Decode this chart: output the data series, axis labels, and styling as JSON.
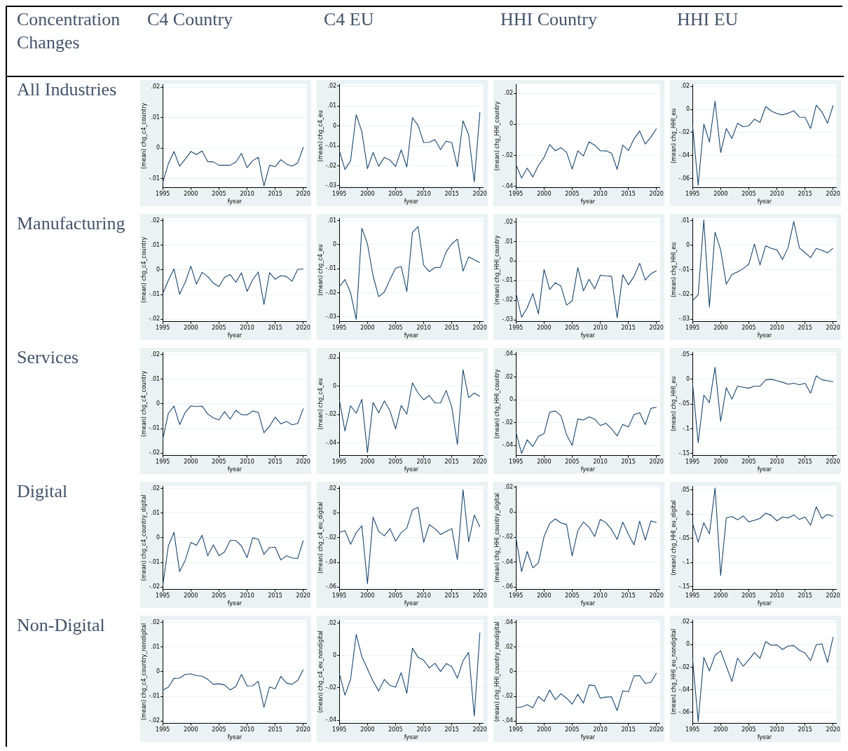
{
  "chart_data": [
    {
      "type": "other",
      "title": "Concentration Changes",
      "categories": [
        "C4 Country",
        "C4 EU",
        "HHI Country",
        "HHI EU"
      ],
      "y_categories": [
        "All Industries",
        "Manufacturing",
        "Services",
        "Digital",
        "Non-Digital"
      ]
    },
    {
      "type": "line",
      "xlabel": "fyear",
      "ylabel": "(mean) chg_c4_country",
      "x": [
        1995,
        1996,
        1997,
        1998,
        1999,
        2000,
        2001,
        2002,
        2003,
        2004,
        2005,
        2006,
        2007,
        2008,
        2009,
        2010,
        2011,
        2012,
        2013,
        2014,
        2015,
        2016,
        2017,
        2018,
        2019,
        2020
      ],
      "xlim": [
        1995,
        2020.6
      ],
      "xticks": [
        1995,
        2000,
        2005,
        2010,
        2015,
        2020
      ],
      "ylim": [
        -0.013,
        0.021
      ],
      "yticks": [
        {
          "value": -0.01,
          "label": "-.01"
        },
        {
          "value": 0,
          "label": "0"
        },
        {
          "value": 0.01,
          "label": ".01"
        },
        {
          "value": 0.02,
          "label": ".02"
        }
      ],
      "grid": "y",
      "series": [
        {
          "color": "#1a476f",
          "values": [
            -0.0113,
            -0.0051,
            -0.0011,
            -0.0059,
            -0.0036,
            -0.0011,
            -0.0021,
            -0.0009,
            -0.0044,
            -0.0045,
            -0.0056,
            -0.0056,
            -0.0056,
            -0.0046,
            -0.0017,
            -0.0064,
            -0.0041,
            -0.003,
            -0.0124,
            -0.0056,
            -0.0061,
            -0.0038,
            -0.0052,
            -0.0059,
            -0.0049,
            0.0003
          ]
        }
      ]
    },
    {
      "type": "line",
      "xlabel": "fyear",
      "ylabel": "(mean) chg_c4_eu",
      "x": [
        1995,
        1996,
        1997,
        1998,
        1999,
        2000,
        2001,
        2002,
        2003,
        2004,
        2005,
        2006,
        2007,
        2008,
        2009,
        2010,
        2011,
        2012,
        2013,
        2014,
        2015,
        2016,
        2017,
        2018,
        2019,
        2020
      ],
      "xlim": [
        1995,
        2020.6
      ],
      "xticks": [
        1995,
        2000,
        2005,
        2010,
        2015,
        2020
      ],
      "ylim": [
        -0.031,
        0.021
      ],
      "yticks": [
        {
          "value": -0.03,
          "label": "-.03"
        },
        {
          "value": -0.02,
          "label": "-.02"
        },
        {
          "value": -0.01,
          "label": "-.01"
        },
        {
          "value": 0,
          "label": "0"
        },
        {
          "value": 0.01,
          "label": ".01"
        },
        {
          "value": 0.02,
          "label": ".02"
        }
      ],
      "grid": "y",
      "series": [
        {
          "color": "#1a476f",
          "values": [
            -0.0124,
            -0.0218,
            -0.0174,
            0.0056,
            -0.0028,
            -0.0214,
            -0.0133,
            -0.0202,
            -0.0158,
            -0.0171,
            -0.0203,
            -0.012,
            -0.0206,
            0.0042,
            0.0003,
            -0.0083,
            -0.0082,
            -0.0068,
            -0.0118,
            -0.0076,
            -0.0084,
            -0.0204,
            0.0026,
            -0.0044,
            -0.0281,
            0.007
          ]
        }
      ]
    },
    {
      "type": "line",
      "xlabel": "fyear",
      "ylabel": "(mean) chg_HHI_country",
      "x": [
        1995,
        1996,
        1997,
        1998,
        1999,
        2000,
        2001,
        2002,
        2003,
        2004,
        2005,
        2006,
        2007,
        2008,
        2009,
        2010,
        2011,
        2012,
        2013,
        2014,
        2015,
        2016,
        2017,
        2018,
        2019,
        2020
      ],
      "xlim": [
        1995,
        2020.6
      ],
      "xticks": [
        1995,
        2000,
        2005,
        2010,
        2015,
        2020
      ],
      "ylim": [
        -0.041,
        0.026
      ],
      "yticks": [
        {
          "value": -0.04,
          "label": "-.04"
        },
        {
          "value": -0.02,
          "label": "-.02"
        },
        {
          "value": 0,
          "label": "0"
        },
        {
          "value": 0.02,
          "label": ".02"
        }
      ],
      "grid": "y",
      "series": [
        {
          "color": "#1a476f",
          "values": [
            -0.026,
            -0.0347,
            -0.0283,
            -0.034,
            -0.0266,
            -0.0214,
            -0.013,
            -0.0171,
            -0.0151,
            -0.018,
            -0.0289,
            -0.0171,
            -0.0204,
            -0.0113,
            -0.0134,
            -0.017,
            -0.0171,
            -0.0186,
            -0.0291,
            -0.0134,
            -0.0169,
            -0.0094,
            -0.0043,
            -0.0127,
            -0.0083,
            -0.0027
          ]
        }
      ]
    },
    {
      "type": "line",
      "xlabel": "fyear",
      "ylabel": "(mean) chg_HHI_eu",
      "x": [
        1995,
        1996,
        1997,
        1998,
        1999,
        2000,
        2001,
        2002,
        2003,
        2004,
        2005,
        2006,
        2007,
        2008,
        2009,
        2010,
        2011,
        2012,
        2013,
        2014,
        2015,
        2016,
        2017,
        2018,
        2019,
        2020
      ],
      "xlim": [
        1995,
        2020.6
      ],
      "xticks": [
        1995,
        2000,
        2005,
        2010,
        2015,
        2020
      ],
      "ylim": [
        -0.068,
        0.022
      ],
      "yticks": [
        {
          "value": -0.06,
          "label": "-.06"
        },
        {
          "value": -0.04,
          "label": "-.04"
        },
        {
          "value": -0.02,
          "label": "-.02"
        },
        {
          "value": 0,
          "label": "0"
        },
        {
          "value": 0.02,
          "label": ".02"
        }
      ],
      "grid": "y",
      "series": [
        {
          "color": "#1a476f",
          "values": [
            -0.0139,
            -0.0658,
            -0.0127,
            -0.0283,
            0.0072,
            -0.0374,
            -0.0165,
            -0.0252,
            -0.012,
            -0.015,
            -0.0142,
            -0.0085,
            -0.0112,
            0.0025,
            -0.0013,
            -0.0036,
            -0.0047,
            -0.0032,
            -0.0011,
            -0.0066,
            -0.0068,
            -0.0165,
            0.0038,
            -0.0021,
            -0.012,
            0.0036
          ]
        }
      ]
    },
    {
      "type": "line",
      "xlabel": "fyear",
      "ylabel": "(mean) chg_c4_country",
      "x": [
        1995,
        1996,
        1997,
        1998,
        1999,
        2000,
        2001,
        2002,
        2003,
        2004,
        2005,
        2006,
        2007,
        2008,
        2009,
        2010,
        2011,
        2012,
        2013,
        2014,
        2015,
        2016,
        2017,
        2018,
        2019,
        2020
      ],
      "xlim": [
        1995,
        2020.6
      ],
      "xticks": [
        1995,
        2000,
        2005,
        2010,
        2015,
        2020
      ],
      "ylim": [
        -0.021,
        0.021
      ],
      "yticks": [
        {
          "value": -0.02,
          "label": "-.02"
        },
        {
          "value": -0.01,
          "label": "-.01"
        },
        {
          "value": 0,
          "label": "0"
        },
        {
          "value": 0.01,
          "label": ".01"
        },
        {
          "value": 0.02,
          "label": ".02"
        }
      ],
      "grid": "y",
      "series": [
        {
          "color": "#1a476f",
          "values": [
            -0.0096,
            -0.0042,
            0.0004,
            -0.0099,
            -0.005,
            0.0015,
            -0.0058,
            -0.001,
            -0.0027,
            -0.0054,
            -0.0067,
            -0.003,
            -0.0019,
            -0.005,
            -0.0012,
            -0.0087,
            -0.004,
            -0.0008,
            -0.014,
            -0.0011,
            -0.0038,
            -0.0023,
            -0.0027,
            -0.0046,
            0.0002,
            0.0004
          ]
        }
      ]
    },
    {
      "type": "line",
      "xlabel": "fyear",
      "ylabel": "(mean) chg_c4_eu",
      "x": [
        1995,
        1996,
        1997,
        1998,
        1999,
        2000,
        2001,
        2002,
        2003,
        2004,
        2005,
        2006,
        2007,
        2008,
        2009,
        2010,
        2011,
        2012,
        2013,
        2014,
        2015,
        2016,
        2017,
        2018,
        2019,
        2020
      ],
      "xlim": [
        1995,
        2020.6
      ],
      "xticks": [
        1995,
        2000,
        2005,
        2010,
        2015,
        2020
      ],
      "ylim": [
        -0.032,
        0.011
      ],
      "yticks": [
        {
          "value": -0.03,
          "label": "-.03"
        },
        {
          "value": -0.02,
          "label": "-.02"
        },
        {
          "value": -0.01,
          "label": "-.01"
        },
        {
          "value": 0,
          "label": "0"
        },
        {
          "value": 0.01,
          "label": ".01"
        }
      ],
      "grid": "y",
      "series": [
        {
          "color": "#1a476f",
          "values": [
            -0.0175,
            -0.0145,
            -0.02,
            -0.0311,
            0.0068,
            0.0003,
            -0.013,
            -0.0216,
            -0.0197,
            -0.0145,
            -0.0098,
            -0.0091,
            -0.0195,
            0.005,
            0.0075,
            -0.0085,
            -0.0112,
            -0.0095,
            -0.0094,
            -0.003,
            0.0003,
            0.0023,
            -0.011,
            -0.0051,
            -0.0063,
            -0.0075
          ]
        }
      ]
    },
    {
      "type": "line",
      "xlabel": "fyear",
      "ylabel": "(mean) chg_HHI_country",
      "x": [
        1995,
        1996,
        1997,
        1998,
        1999,
        2000,
        2001,
        2002,
        2003,
        2004,
        2005,
        2006,
        2007,
        2008,
        2009,
        2010,
        2011,
        2012,
        2013,
        2014,
        2015,
        2016,
        2017,
        2018,
        2019,
        2020
      ],
      "xlim": [
        1995,
        2020.6
      ],
      "xticks": [
        1995,
        2000,
        2005,
        2010,
        2015,
        2020
      ],
      "ylim": [
        -0.031,
        0.022
      ],
      "yticks": [
        {
          "value": -0.03,
          "label": "-.03"
        },
        {
          "value": -0.02,
          "label": "-.02"
        },
        {
          "value": -0.01,
          "label": "-.01"
        },
        {
          "value": 0,
          "label": "0"
        },
        {
          "value": 0.01,
          "label": ".01"
        },
        {
          "value": 0.02,
          "label": ".02"
        }
      ],
      "grid": "y",
      "series": [
        {
          "color": "#1a476f",
          "values": [
            -0.0163,
            -0.0287,
            -0.0239,
            -0.0166,
            -0.027,
            -0.0043,
            -0.0145,
            -0.0111,
            -0.0128,
            -0.0225,
            -0.0203,
            -0.0033,
            -0.0152,
            -0.0093,
            -0.0142,
            -0.0072,
            -0.0076,
            -0.0078,
            -0.029,
            -0.007,
            -0.0121,
            -0.0079,
            -0.0011,
            -0.0097,
            -0.0065,
            -0.0049
          ]
        }
      ]
    },
    {
      "type": "line",
      "xlabel": "fyear",
      "ylabel": "(mean) chg_HHI_eu",
      "x": [
        1995,
        1996,
        1997,
        1998,
        1999,
        2000,
        2001,
        2002,
        2003,
        2004,
        2005,
        2006,
        2007,
        2008,
        2009,
        2010,
        2011,
        2012,
        2013,
        2014,
        2015,
        2016,
        2017,
        2018,
        2019,
        2020
      ],
      "xlim": [
        1995,
        2020.6
      ],
      "xticks": [
        1995,
        2000,
        2005,
        2010,
        2015,
        2020
      ],
      "ylim": [
        -0.031,
        0.011
      ],
      "yticks": [
        {
          "value": -0.03,
          "label": "-.03"
        },
        {
          "value": -0.02,
          "label": "-.02"
        },
        {
          "value": -0.01,
          "label": "-.01"
        },
        {
          "value": 0,
          "label": "0"
        },
        {
          "value": 0.01,
          "label": ".01"
        }
      ],
      "grid": "y",
      "series": [
        {
          "color": "#1a476f",
          "values": [
            -0.0225,
            -0.0201,
            0.0102,
            -0.0251,
            0.0053,
            -0.0019,
            -0.0158,
            -0.0119,
            -0.0108,
            -0.0095,
            -0.0077,
            0.0005,
            -0.008,
            -0.0002,
            -0.0013,
            -0.0019,
            -0.0058,
            -0.0009,
            0.0096,
            -0.0011,
            -0.003,
            -0.005,
            -0.0013,
            -0.0021,
            -0.0031,
            -0.0012
          ]
        }
      ]
    },
    {
      "type": "line",
      "xlabel": "fyear",
      "ylabel": "(mean) chg_c4_country",
      "x": [
        1995,
        1996,
        1997,
        1998,
        1999,
        2000,
        2001,
        2002,
        2003,
        2004,
        2005,
        2006,
        2007,
        2008,
        2009,
        2010,
        2011,
        2012,
        2013,
        2014,
        2015,
        2016,
        2017,
        2018,
        2019,
        2020
      ],
      "xlim": [
        1995,
        2020.6
      ],
      "xticks": [
        1995,
        2000,
        2005,
        2010,
        2015,
        2020
      ],
      "ylim": [
        -0.021,
        0.021
      ],
      "yticks": [
        {
          "value": -0.02,
          "label": "-.02"
        },
        {
          "value": -0.01,
          "label": "-.01"
        },
        {
          "value": 0,
          "label": "0"
        },
        {
          "value": 0.01,
          "label": ".01"
        },
        {
          "value": 0.02,
          "label": ".02"
        }
      ],
      "grid": "y",
      "series": [
        {
          "color": "#1a476f",
          "values": [
            -0.0144,
            -0.0038,
            -0.0009,
            -0.0084,
            -0.0035,
            -0.0008,
            -0.0011,
            -0.0009,
            -0.0041,
            -0.0057,
            -0.0065,
            -0.0032,
            -0.0062,
            -0.0026,
            -0.0044,
            -0.0045,
            -0.0029,
            -0.0035,
            -0.0117,
            -0.0091,
            -0.0054,
            -0.0081,
            -0.0071,
            -0.0085,
            -0.008,
            -0.0019
          ]
        }
      ]
    },
    {
      "type": "line",
      "xlabel": "fyear",
      "ylabel": "(mean) chg_c4_eu",
      "x": [
        1995,
        1996,
        1997,
        1998,
        1999,
        2000,
        2001,
        2002,
        2003,
        2004,
        2005,
        2006,
        2007,
        2008,
        2009,
        2010,
        2011,
        2012,
        2013,
        2014,
        2015,
        2016,
        2017,
        2018,
        2019,
        2020
      ],
      "xlim": [
        1995,
        2020.6
      ],
      "xticks": [
        1995,
        2000,
        2005,
        2010,
        2015,
        2020
      ],
      "ylim": [
        -0.049,
        0.024
      ],
      "yticks": [
        {
          "value": -0.04,
          "label": "-.04"
        },
        {
          "value": -0.02,
          "label": "-.02"
        },
        {
          "value": 0,
          "label": "0"
        },
        {
          "value": 0.02,
          "label": ".02"
        }
      ],
      "grid": "y",
      "series": [
        {
          "color": "#1a476f",
          "values": [
            -0.0098,
            -0.0316,
            -0.0139,
            -0.0191,
            -0.0093,
            -0.0469,
            -0.0116,
            -0.0189,
            -0.0105,
            -0.0174,
            -0.0301,
            -0.0137,
            -0.0197,
            0.0023,
            -0.0049,
            -0.0096,
            -0.0066,
            -0.0119,
            -0.0118,
            -0.0031,
            -0.0148,
            -0.0412,
            0.0115,
            -0.0082,
            -0.0049,
            -0.0072
          ]
        }
      ]
    },
    {
      "type": "line",
      "xlabel": "fyear",
      "ylabel": "(mean) chg_HHI_country",
      "x": [
        1995,
        1996,
        1997,
        1998,
        1999,
        2000,
        2001,
        2002,
        2003,
        2004,
        2005,
        2006,
        2007,
        2008,
        2009,
        2010,
        2011,
        2012,
        2013,
        2014,
        2015,
        2016,
        2017,
        2018,
        2019,
        2020
      ],
      "xlim": [
        1995,
        2020.6
      ],
      "xticks": [
        1995,
        2000,
        2005,
        2010,
        2015,
        2020
      ],
      "ylim": [
        -0.049,
        0.042
      ],
      "yticks": [
        {
          "value": -0.04,
          "label": "-.04"
        },
        {
          "value": -0.02,
          "label": "-.02"
        },
        {
          "value": 0,
          "label": "0"
        },
        {
          "value": 0.02,
          "label": ".02"
        },
        {
          "value": 0.04,
          "label": ".04"
        }
      ],
      "grid": "y",
      "series": [
        {
          "color": "#1a476f",
          "values": [
            -0.0285,
            -0.0471,
            -0.035,
            -0.041,
            -0.0321,
            -0.0296,
            -0.0108,
            -0.0098,
            -0.014,
            -0.0306,
            -0.04,
            -0.0169,
            -0.0177,
            -0.015,
            -0.0169,
            -0.0225,
            -0.0206,
            -0.0254,
            -0.0317,
            -0.0215,
            -0.0238,
            -0.0129,
            -0.0113,
            -0.0217,
            -0.0075,
            -0.0065
          ]
        }
      ]
    },
    {
      "type": "line",
      "xlabel": "fyear",
      "ylabel": "(mean) chg_HHI_eu",
      "x": [
        1995,
        1996,
        1997,
        1998,
        1999,
        2000,
        2001,
        2002,
        2003,
        2004,
        2005,
        2006,
        2007,
        2008,
        2009,
        2010,
        2011,
        2012,
        2013,
        2014,
        2015,
        2016,
        2017,
        2018,
        2019,
        2020
      ],
      "xlim": [
        1995,
        2020.6
      ],
      "xticks": [
        1995,
        2000,
        2005,
        2010,
        2015,
        2020
      ],
      "ylim": [
        -0.154,
        0.055
      ],
      "yticks": [
        {
          "value": -0.15,
          "label": "-.15"
        },
        {
          "value": -0.1,
          "label": "-.1"
        },
        {
          "value": -0.05,
          "label": "-.05"
        },
        {
          "value": 0,
          "label": "0"
        },
        {
          "value": 0.05,
          "label": ".05"
        }
      ],
      "grid": "y",
      "series": [
        {
          "color": "#1a476f",
          "values": [
            -0.008,
            -0.128,
            -0.032,
            -0.047,
            0.024,
            -0.085,
            -0.017,
            -0.04,
            -0.014,
            -0.016,
            -0.018,
            -0.014,
            -0.014,
            -0.001,
            0,
            -0.003,
            -0.006,
            -0.01,
            -0.008,
            -0.011,
            -0.008,
            -0.028,
            0.007,
            -0.001,
            -0.003,
            -0.005
          ]
        }
      ]
    },
    {
      "type": "line",
      "xlabel": "fyear",
      "ylabel": "(mean) chg_c4_country_digital",
      "x": [
        1995,
        1996,
        1997,
        1998,
        1999,
        2000,
        2001,
        2002,
        2003,
        2004,
        2005,
        2006,
        2007,
        2008,
        2009,
        2010,
        2011,
        2012,
        2013,
        2014,
        2015,
        2016,
        2017,
        2018,
        2019,
        2020
      ],
      "xlim": [
        1995,
        2020.6
      ],
      "xticks": [
        1995,
        2000,
        2005,
        2010,
        2015,
        2020
      ],
      "ylim": [
        -0.021,
        0.021
      ],
      "yticks": [
        {
          "value": -0.02,
          "label": "-.02"
        },
        {
          "value": -0.01,
          "label": "-.01"
        },
        {
          "value": 0,
          "label": "0"
        },
        {
          "value": 0.01,
          "label": ".01"
        },
        {
          "value": 0.02,
          "label": ".02"
        }
      ],
      "grid": "y",
      "series": [
        {
          "color": "#1a476f",
          "values": [
            -0.0194,
            -0.0033,
            0.0022,
            -0.0137,
            -0.0091,
            -0.0019,
            -0.0031,
            0.001,
            -0.0073,
            -0.0029,
            -0.0073,
            -0.0057,
            -0.0011,
            -0.0011,
            -0.0033,
            -0.008,
            0,
            -0.0006,
            -0.0067,
            -0.004,
            -0.0038,
            -0.009,
            -0.0073,
            -0.0082,
            -0.0084,
            -0.0011
          ]
        }
      ]
    },
    {
      "type": "line",
      "xlabel": "fyear",
      "ylabel": "(mean) chg_c4_eu_digital",
      "x": [
        1995,
        1996,
        1997,
        1998,
        1999,
        2000,
        2001,
        2002,
        2003,
        2004,
        2005,
        2006,
        2007,
        2008,
        2009,
        2010,
        2011,
        2012,
        2013,
        2014,
        2015,
        2016,
        2017,
        2018,
        2019,
        2020
      ],
      "xlim": [
        1995,
        2020.6
      ],
      "xticks": [
        1995,
        2000,
        2005,
        2010,
        2015,
        2020
      ],
      "ylim": [
        -0.062,
        0.022
      ],
      "yticks": [
        {
          "value": -0.06,
          "label": "-.06"
        },
        {
          "value": -0.04,
          "label": "-.04"
        },
        {
          "value": -0.02,
          "label": "-.02"
        },
        {
          "value": 0,
          "label": "0"
        },
        {
          "value": 0.02,
          "label": ".02"
        }
      ],
      "grid": "y",
      "series": [
        {
          "color": "#1a476f",
          "values": [
            -0.0156,
            -0.0142,
            -0.0253,
            -0.0159,
            -0.0103,
            -0.0572,
            -0.0032,
            -0.0149,
            -0.0184,
            -0.0126,
            -0.0227,
            -0.0159,
            -0.0122,
            0.0025,
            0.0046,
            -0.0237,
            -0.0094,
            -0.0126,
            -0.0173,
            -0.0149,
            -0.0126,
            -0.0377,
            0.0189,
            -0.0232,
            -0.0016,
            -0.0112
          ]
        }
      ]
    },
    {
      "type": "line",
      "xlabel": "fyear",
      "ylabel": "(mean) chg_HHI_country_digital",
      "x": [
        1995,
        1996,
        1997,
        1998,
        1999,
        2000,
        2001,
        2002,
        2003,
        2004,
        2005,
        2006,
        2007,
        2008,
        2009,
        2010,
        2011,
        2012,
        2013,
        2014,
        2015,
        2016,
        2017,
        2018,
        2019,
        2020
      ],
      "xlim": [
        1995,
        2020.6
      ],
      "xticks": [
        1995,
        2000,
        2005,
        2010,
        2015,
        2020
      ],
      "ylim": [
        -0.062,
        0.021
      ],
      "yticks": [
        {
          "value": -0.06,
          "label": "-.06"
        },
        {
          "value": -0.04,
          "label": "-.04"
        },
        {
          "value": -0.02,
          "label": "-.02"
        },
        {
          "value": 0,
          "label": "0"
        },
        {
          "value": 0.02,
          "label": ".02"
        }
      ],
      "grid": "y",
      "series": [
        {
          "color": "#1a476f",
          "values": [
            -0.0202,
            -0.0476,
            -0.0315,
            -0.0446,
            -0.0406,
            -0.0195,
            -0.009,
            -0.0054,
            -0.0086,
            -0.0098,
            -0.035,
            -0.0148,
            -0.0079,
            -0.0121,
            -0.0195,
            -0.0058,
            -0.0084,
            -0.0139,
            -0.0218,
            -0.0079,
            -0.0178,
            -0.0262,
            -0.0072,
            -0.0223,
            -0.007,
            -0.0083
          ]
        }
      ]
    },
    {
      "type": "line",
      "xlabel": "fyear",
      "ylabel": "(mean) chg_HHI_eu_digital",
      "x": [
        1995,
        1996,
        1997,
        1998,
        1999,
        2000,
        2001,
        2002,
        2003,
        2004,
        2005,
        2006,
        2007,
        2008,
        2009,
        2010,
        2011,
        2012,
        2013,
        2014,
        2015,
        2016,
        2017,
        2018,
        2019,
        2020
      ],
      "xlim": [
        1995,
        2020.6
      ],
      "xticks": [
        1995,
        2000,
        2005,
        2010,
        2015,
        2020
      ],
      "ylim": [
        -0.156,
        0.058
      ],
      "yticks": [
        {
          "value": -0.15,
          "label": "-.15"
        },
        {
          "value": -0.1,
          "label": "-.1"
        },
        {
          "value": -0.05,
          "label": "-.05"
        },
        {
          "value": 0,
          "label": "0"
        },
        {
          "value": 0.05,
          "label": ".05"
        }
      ],
      "grid": "y",
      "series": [
        {
          "color": "#1a476f",
          "values": [
            -0.019,
            -0.058,
            -0.018,
            -0.041,
            0.054,
            -0.127,
            -0.008,
            -0.005,
            -0.012,
            -0.004,
            -0.016,
            -0.013,
            -0.009,
            0.002,
            -0.003,
            -0.014,
            -0.006,
            -0.008,
            -0.002,
            -0.011,
            -0.006,
            -0.023,
            0.015,
            -0.009,
            -0.001,
            -0.005
          ]
        }
      ]
    },
    {
      "type": "line",
      "xlabel": "fyear",
      "ylabel": "(mean) chg_c4_country_nondigital",
      "x": [
        1995,
        1996,
        1997,
        1998,
        1999,
        2000,
        2001,
        2002,
        2003,
        2004,
        2005,
        2006,
        2007,
        2008,
        2009,
        2010,
        2011,
        2012,
        2013,
        2014,
        2015,
        2016,
        2017,
        2018,
        2019,
        2020
      ],
      "xlim": [
        1995,
        2020.6
      ],
      "xticks": [
        1995,
        2000,
        2005,
        2010,
        2015,
        2020
      ],
      "ylim": [
        -0.021,
        0.021
      ],
      "yticks": [
        {
          "value": -0.02,
          "label": "-.02"
        },
        {
          "value": -0.01,
          "label": "-.01"
        },
        {
          "value": 0,
          "label": "0"
        },
        {
          "value": 0.01,
          "label": ".01"
        },
        {
          "value": 0.02,
          "label": ".02"
        }
      ],
      "grid": "y",
      "series": [
        {
          "color": "#1a476f",
          "values": [
            -0.0075,
            -0.0063,
            -0.0027,
            -0.0026,
            -0.0011,
            -0.0009,
            -0.0016,
            -0.0018,
            -0.0031,
            -0.0051,
            -0.0049,
            -0.0054,
            -0.0074,
            -0.006,
            -0.0011,
            -0.0058,
            -0.0057,
            -0.0039,
            -0.0144,
            -0.0062,
            -0.0069,
            -0.0019,
            -0.0046,
            -0.0051,
            -0.0035,
            0.0008
          ]
        }
      ]
    },
    {
      "type": "line",
      "xlabel": "fyear",
      "ylabel": "(mean) chg_c4_eu_nondigital",
      "x": [
        1995,
        1996,
        1997,
        1998,
        1999,
        2000,
        2001,
        2002,
        2003,
        2004,
        2005,
        2006,
        2007,
        2008,
        2009,
        2010,
        2011,
        2012,
        2013,
        2014,
        2015,
        2016,
        2017,
        2018,
        2019,
        2020
      ],
      "xlim": [
        1995,
        2020.6
      ],
      "xticks": [
        1995,
        2000,
        2005,
        2010,
        2015,
        2020
      ],
      "ylim": [
        -0.042,
        0.022
      ],
      "yticks": [
        {
          "value": -0.04,
          "label": "-.04"
        },
        {
          "value": -0.02,
          "label": "-.02"
        },
        {
          "value": 0,
          "label": "0"
        },
        {
          "value": 0.02,
          "label": ".02"
        }
      ],
      "grid": "y",
      "series": [
        {
          "color": "#1a476f",
          "values": [
            -0.0111,
            -0.0245,
            -0.0146,
            0.013,
            -0.0007,
            -0.0083,
            -0.0159,
            -0.0219,
            -0.0148,
            -0.0185,
            -0.0195,
            -0.0106,
            -0.0233,
            0.0045,
            -0.0011,
            -0.0029,
            -0.0077,
            -0.0048,
            -0.0099,
            -0.005,
            -0.0069,
            -0.014,
            -0.0032,
            0.0019,
            -0.0374,
            0.0142
          ]
        }
      ]
    },
    {
      "type": "line",
      "xlabel": "fyear",
      "ylabel": "(mean) chg_HHI_country_nondigital",
      "x": [
        1995,
        1996,
        1997,
        1998,
        1999,
        2000,
        2001,
        2002,
        2003,
        2004,
        2005,
        2006,
        2007,
        2008,
        2009,
        2010,
        2011,
        2012,
        2013,
        2014,
        2015,
        2016,
        2017,
        2018,
        2019,
        2020
      ],
      "xlim": [
        1995,
        2020.6
      ],
      "xticks": [
        1995,
        2000,
        2005,
        2010,
        2015,
        2020
      ],
      "ylim": [
        -0.042,
        0.042
      ],
      "yticks": [
        {
          "value": -0.04,
          "label": "-.04"
        },
        {
          "value": -0.02,
          "label": "-.02"
        },
        {
          "value": 0,
          "label": "0"
        },
        {
          "value": 0.02,
          "label": ".02"
        },
        {
          "value": 0.04,
          "label": ".04"
        }
      ],
      "grid": "y",
      "series": [
        {
          "color": "#1a476f",
          "values": [
            -0.029,
            -0.0286,
            -0.0268,
            -0.0293,
            -0.0201,
            -0.024,
            -0.0149,
            -0.0227,
            -0.0179,
            -0.0215,
            -0.0263,
            -0.0183,
            -0.0254,
            -0.0108,
            -0.0112,
            -0.0215,
            -0.0206,
            -0.0204,
            -0.0316,
            -0.0155,
            -0.0163,
            -0.0034,
            -0.0032,
            -0.0094,
            -0.0087,
            -0.0011
          ]
        }
      ]
    },
    {
      "type": "line",
      "xlabel": "fyear",
      "ylabel": "(mean) chg_HHI_eu_nondigital",
      "x": [
        1995,
        1996,
        1997,
        1998,
        1999,
        2000,
        2001,
        2002,
        2003,
        2004,
        2005,
        2006,
        2007,
        2008,
        2009,
        2010,
        2011,
        2012,
        2013,
        2014,
        2015,
        2016,
        2017,
        2018,
        2019,
        2020
      ],
      "xlim": [
        1995,
        2020.6
      ],
      "xticks": [
        1995,
        2000,
        2005,
        2010,
        2015,
        2020
      ],
      "ylim": [
        -0.07,
        0.022
      ],
      "yticks": [
        {
          "value": -0.06,
          "label": "-.06"
        },
        {
          "value": -0.04,
          "label": "-.04"
        },
        {
          "value": -0.02,
          "label": "-.02"
        },
        {
          "value": 0,
          "label": "0"
        },
        {
          "value": 0.02,
          "label": ".02"
        }
      ],
      "grid": "y",
      "series": [
        {
          "color": "#1a476f",
          "values": [
            -0.0123,
            -0.0684,
            -0.0113,
            -0.0234,
            -0.0094,
            -0.0055,
            -0.0191,
            -0.0327,
            -0.0119,
            -0.0191,
            -0.0136,
            -0.007,
            -0.0121,
            0.0027,
            -0.0006,
            -0.0002,
            -0.0043,
            -0.0012,
            -0.0008,
            -0.0051,
            -0.0074,
            -0.0142,
            -0.0002,
            0.0008,
            -0.0158,
            0.0068
          ]
        }
      ]
    }
  ]
}
